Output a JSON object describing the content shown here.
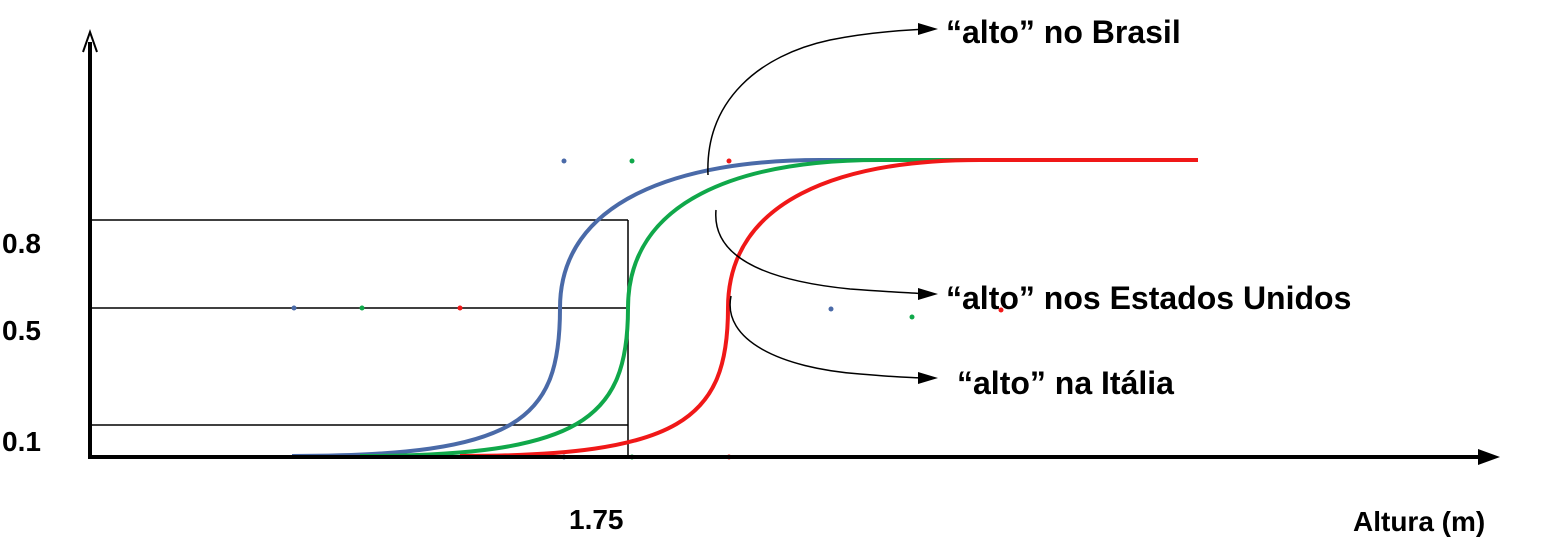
{
  "y_ticks": [
    "0.8",
    "0.5",
    "0.1"
  ],
  "x_tick": "1.75",
  "x_axis_label": "Altura (m)",
  "callouts": {
    "brasil": "“alto” no Brasil",
    "eua": "“alto” nos Estados Unidos",
    "italia": "“alto” na  Itália"
  },
  "colors": {
    "brasil": "#4a6aa8",
    "eua": "#10a84a",
    "italia": "#f01818",
    "axis": "#000000"
  }
}
